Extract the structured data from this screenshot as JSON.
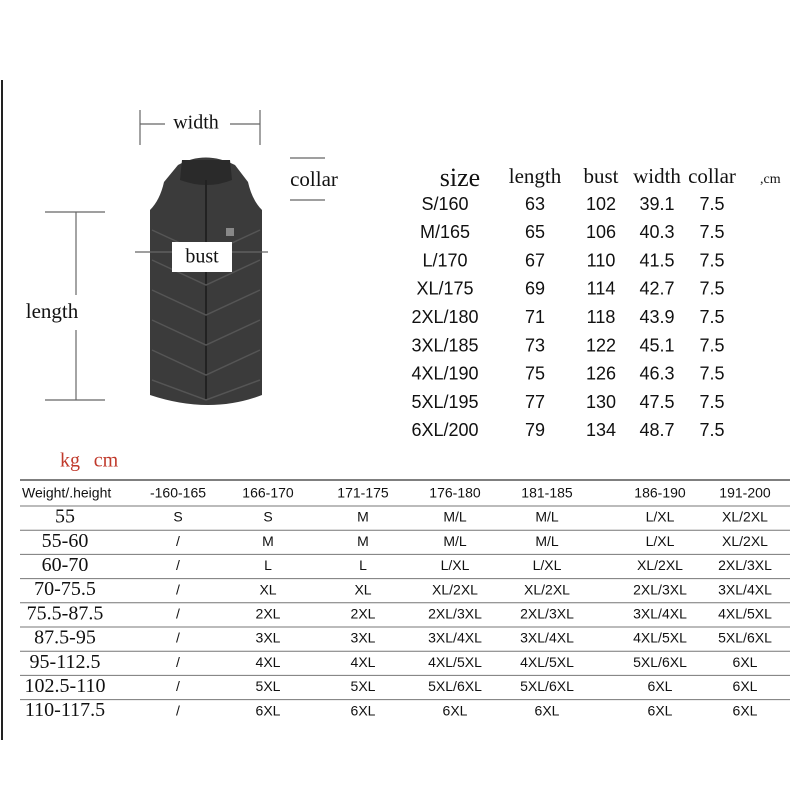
{
  "diagram": {
    "labels": {
      "width": "width",
      "collar": "collar",
      "bust": "bust",
      "length": "length"
    }
  },
  "size_table": {
    "headers": [
      "size",
      "length",
      "bust",
      "width",
      "collar"
    ],
    "unit": ",cm",
    "rows": [
      [
        "S/160",
        63,
        102,
        39.1,
        7.5
      ],
      [
        "M/165",
        65,
        106,
        40.3,
        7.5
      ],
      [
        "L/170",
        67,
        110,
        41.5,
        7.5
      ],
      [
        "XL/175",
        69,
        114,
        42.7,
        7.5
      ],
      [
        "2XL/180",
        71,
        118,
        43.9,
        7.5
      ],
      [
        "3XL/185",
        73,
        122,
        45.1,
        7.5
      ],
      [
        "4XL/190",
        75,
        126,
        46.3,
        7.5
      ],
      [
        "5XL/195",
        77,
        130,
        47.5,
        7.5
      ],
      [
        "6XL/200",
        79,
        134,
        48.7,
        7.5
      ]
    ]
  },
  "weight_table": {
    "units": [
      "kg",
      "cm"
    ],
    "headers": [
      "Weight/.height",
      "-160-165",
      "166-170",
      "171-175",
      "176-180",
      "181-185",
      "186-190",
      "191-200"
    ],
    "rows": [
      [
        "55",
        "S",
        "S",
        "M",
        "M/L",
        "M/L",
        "L/XL",
        "XL/2XL"
      ],
      [
        "55-60",
        "/",
        "M",
        "M",
        "M/L",
        "M/L",
        "L/XL",
        "XL/2XL"
      ],
      [
        "60-70",
        "/",
        "L",
        "L",
        "L/XL",
        "L/XL",
        "XL/2XL",
        "2XL/3XL"
      ],
      [
        "70-75.5",
        "/",
        "XL",
        "XL",
        "XL/2XL",
        "XL/2XL",
        "2XL/3XL",
        "3XL/4XL"
      ],
      [
        "75.5-87.5",
        "/",
        "2XL",
        "2XL",
        "2XL/3XL",
        "2XL/3XL",
        "3XL/4XL",
        "4XL/5XL"
      ],
      [
        "87.5-95",
        "/",
        "3XL",
        "3XL",
        "3XL/4XL",
        "3XL/4XL",
        "4XL/5XL",
        "5XL/6XL"
      ],
      [
        "95-112.5",
        "/",
        "4XL",
        "4XL",
        "4XL/5XL",
        "4XL/5XL",
        "5XL/6XL",
        "6XL"
      ],
      [
        "102.5-110",
        "/",
        "5XL",
        "5XL",
        "5XL/6XL",
        "5XL/6XL",
        "6XL",
        "6XL"
      ],
      [
        "110-117.5",
        "/",
        "6XL",
        "6XL",
        "6XL",
        "6XL",
        "6XL",
        "6XL"
      ]
    ]
  }
}
